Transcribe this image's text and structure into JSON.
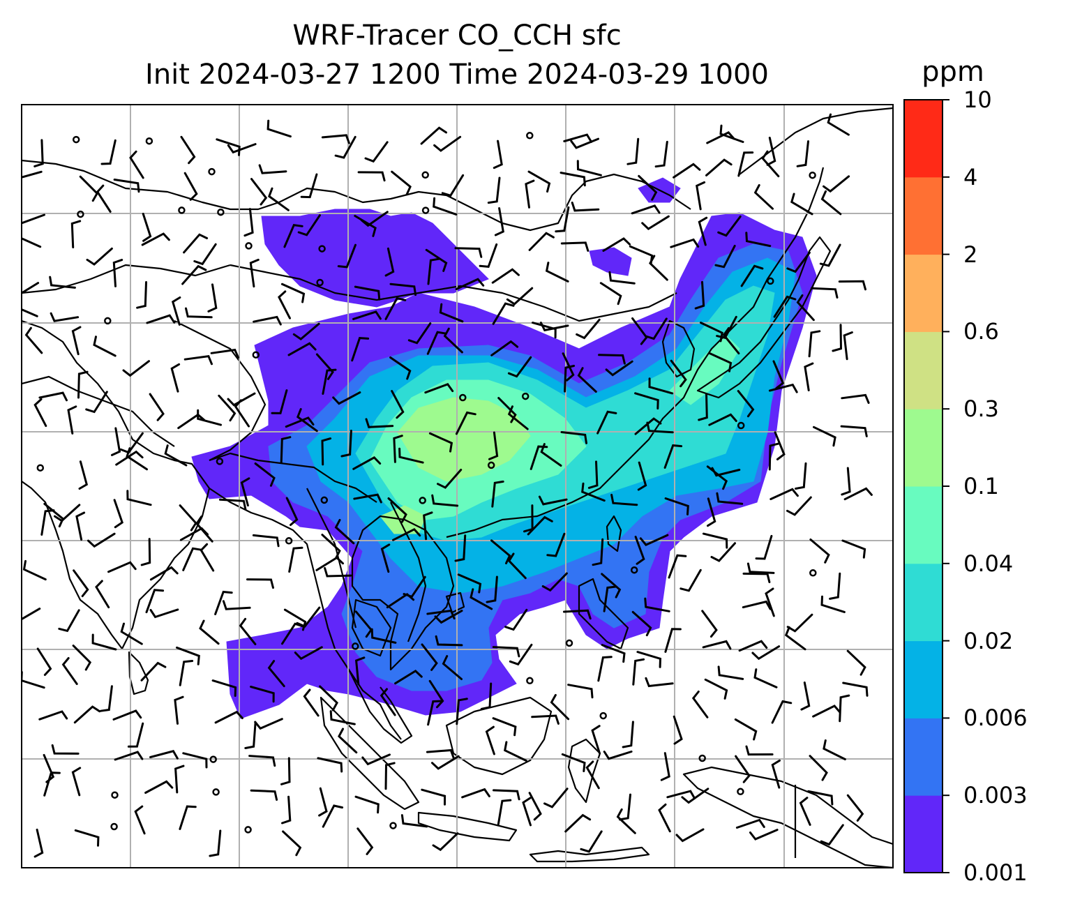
{
  "title": {
    "line1": "WRF-Tracer CO_CCH sfc",
    "line2": "Init 2024-03-27 1200 Time 2024-03-29 1000"
  },
  "colorbar": {
    "unit": "ppm",
    "levels": [
      "0.001",
      "0.003",
      "0.006",
      "0.02",
      "0.04",
      "0.1",
      "0.3",
      "0.6",
      "2",
      "4",
      "10"
    ],
    "colors": [
      "#6127f9",
      "#3374f3",
      "#04b2e6",
      "#2fdcd4",
      "#68fbbf",
      "#9efa8f",
      "#cfe184",
      "#ffb05c",
      "#ff7033",
      "#ff2a17"
    ]
  },
  "map": {
    "gridlines": true,
    "coastline_color": "#000000",
    "gridline_color": "#b0b0b0",
    "field_description_levels": [
      {
        "level": 0,
        "color": "#6127f9"
      },
      {
        "level": 1,
        "color": "#3374f3"
      },
      {
        "level": 2,
        "color": "#04b2e6"
      },
      {
        "level": 3,
        "color": "#2fdcd4"
      },
      {
        "level": 4,
        "color": "#68fbbf"
      },
      {
        "level": 5,
        "color": "#9efa8f"
      }
    ]
  }
}
